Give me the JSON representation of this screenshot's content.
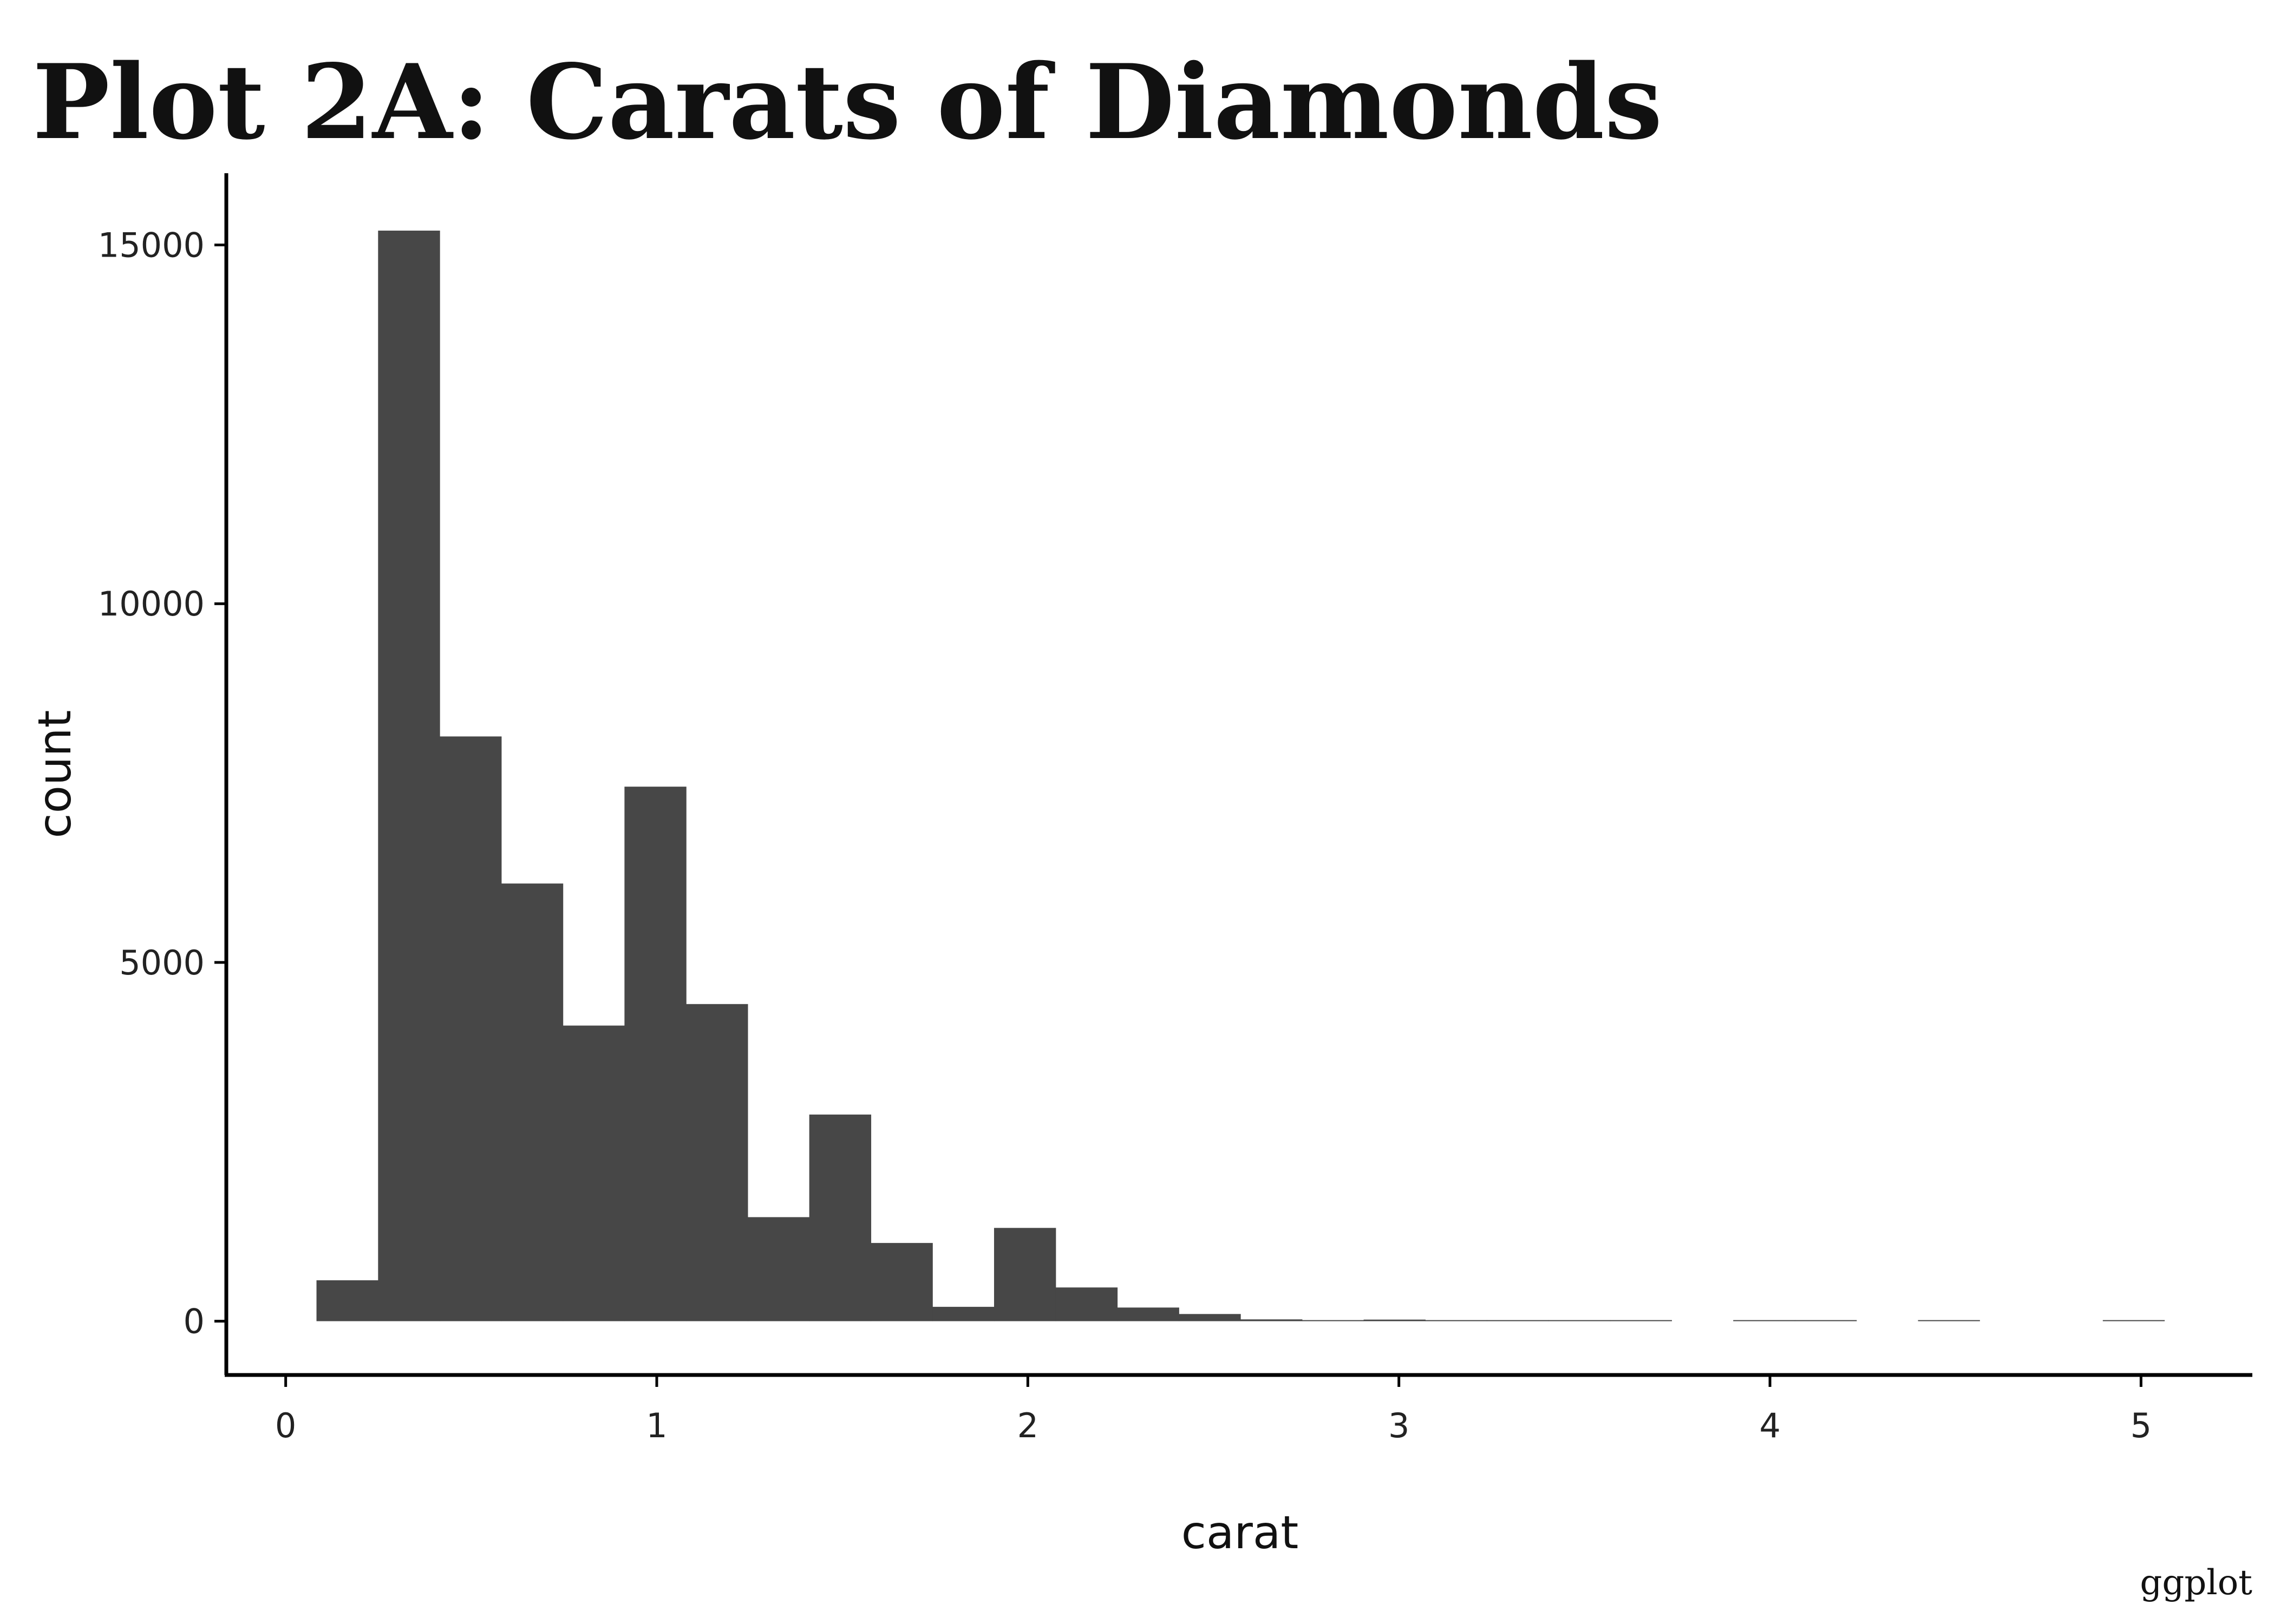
{
  "chart_data": {
    "type": "bar",
    "title": "Plot 2A: Carats of Diamonds",
    "xlabel": "carat",
    "ylabel": "count",
    "caption": "ggplot",
    "xlim": [
      -0.16,
      5.3
    ],
    "ylim": [
      -750,
      16000
    ],
    "x_ticks": [
      0,
      1,
      2,
      3,
      4,
      5
    ],
    "y_ticks": [
      0,
      5000,
      10000,
      15000
    ],
    "grid": false,
    "bar_color": "#474747",
    "bin_width": 0.166,
    "bins": [
      {
        "x": 0.166,
        "count": 570
      },
      {
        "x": 0.332,
        "count": 15200
      },
      {
        "x": 0.498,
        "count": 8150
      },
      {
        "x": 0.664,
        "count": 6100
      },
      {
        "x": 0.83,
        "count": 4120
      },
      {
        "x": 0.996,
        "count": 7450
      },
      {
        "x": 1.162,
        "count": 4420
      },
      {
        "x": 1.328,
        "count": 1450
      },
      {
        "x": 1.494,
        "count": 2880
      },
      {
        "x": 1.66,
        "count": 1090
      },
      {
        "x": 1.826,
        "count": 200
      },
      {
        "x": 1.992,
        "count": 1300
      },
      {
        "x": 2.158,
        "count": 470
      },
      {
        "x": 2.324,
        "count": 190
      },
      {
        "x": 2.49,
        "count": 100
      },
      {
        "x": 2.656,
        "count": 25
      },
      {
        "x": 2.822,
        "count": 8
      },
      {
        "x": 2.988,
        "count": 22
      },
      {
        "x": 3.154,
        "count": 6
      },
      {
        "x": 3.32,
        "count": 4
      },
      {
        "x": 3.486,
        "count": 4
      },
      {
        "x": 3.652,
        "count": 3
      },
      {
        "x": 3.984,
        "count": 4
      },
      {
        "x": 4.15,
        "count": 2
      },
      {
        "x": 4.482,
        "count": 1
      },
      {
        "x": 4.98,
        "count": 1
      }
    ]
  }
}
